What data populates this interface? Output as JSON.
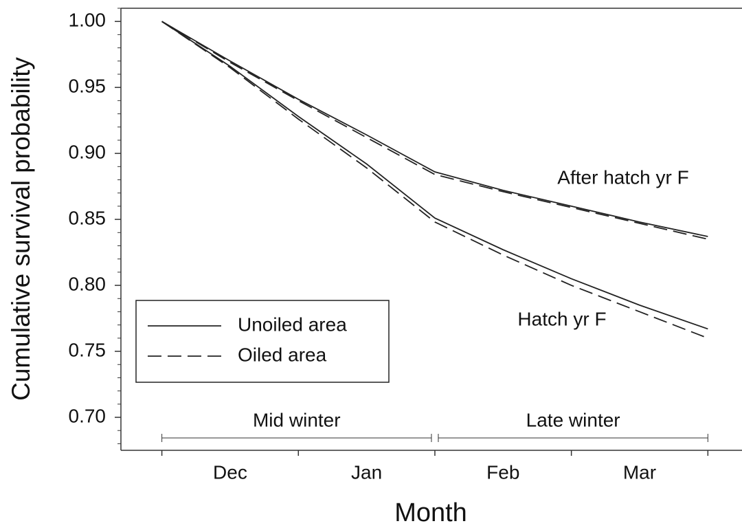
{
  "chart_data": {
    "type": "line",
    "xlabel": "Month",
    "ylabel": "Cumulative survival probability",
    "categories": [
      "Dec",
      "Jan",
      "Feb",
      "Mar"
    ],
    "x": [
      0,
      0.5,
      1,
      1.5,
      2,
      2.5,
      3,
      3.5,
      4
    ],
    "xlim": [
      -0.3,
      4.25
    ],
    "xticks": [
      0,
      1,
      2,
      3,
      4
    ],
    "ylim": [
      0.675,
      1.01
    ],
    "yticks": [
      {
        "value": 0.7,
        "label": "0.70"
      },
      {
        "value": 0.75,
        "label": "0.75"
      },
      {
        "value": 0.8,
        "label": "0.80"
      },
      {
        "value": 0.85,
        "label": "0.85"
      },
      {
        "value": 0.9,
        "label": "0.90"
      },
      {
        "value": 0.95,
        "label": "0.95"
      },
      {
        "value": 1,
        "label": "1.00"
      }
    ],
    "yminorticks": [
      0.68,
      0.69,
      0.71,
      0.72,
      0.73,
      0.74,
      0.76,
      0.77,
      0.78,
      0.79,
      0.81,
      0.82,
      0.83,
      0.84,
      0.86,
      0.87,
      0.88,
      0.89,
      0.91,
      0.92,
      0.93,
      0.94,
      0.96,
      0.97,
      0.98,
      0.99,
      1.01
    ],
    "color": "#222222",
    "series": [
      {
        "name": "Unoiled area",
        "dash": "solid"
      },
      {
        "name": "Oiled area",
        "dash": "dashed"
      }
    ],
    "groups": [
      {
        "label": "After hatch yr F",
        "values": [
          [
            1.0,
            0.97,
            0.941,
            0.914,
            0.886,
            0.872,
            0.86,
            0.848,
            0.837
          ],
          [
            1.0,
            0.969,
            0.94,
            0.912,
            0.884,
            0.871,
            0.859,
            0.847,
            0.835
          ]
        ]
      },
      {
        "label": "Hatch yr F",
        "values": [
          [
            1.0,
            0.966,
            0.928,
            0.892,
            0.851,
            0.827,
            0.805,
            0.785,
            0.767
          ],
          [
            1.0,
            0.965,
            0.926,
            0.889,
            0.848,
            0.823,
            0.8,
            0.78,
            0.76
          ]
        ]
      }
    ],
    "periods": [
      {
        "label": "Mid winter",
        "start": 0,
        "end": 2
      },
      {
        "label": "Late winter",
        "start": 2,
        "end": 4
      }
    ]
  }
}
